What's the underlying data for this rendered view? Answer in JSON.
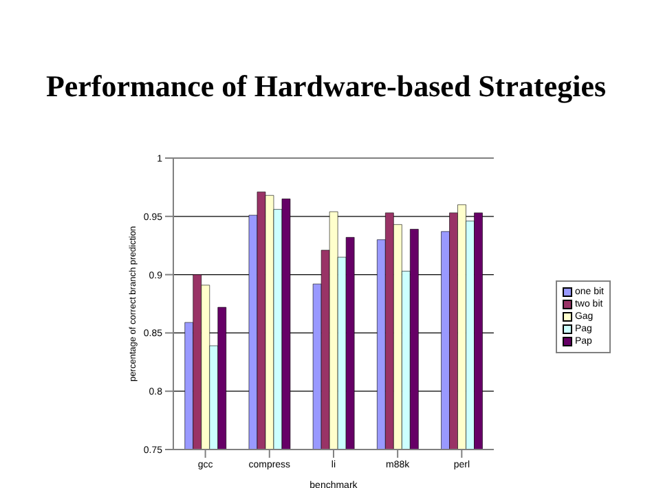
{
  "chart_data": {
    "type": "bar",
    "title": "Performance of Hardware-based Strategies",
    "xlabel": "benchmark",
    "ylabel": "percentage of correct branch prediction",
    "categories": [
      "gcc",
      "compress",
      "li",
      "m88k",
      "perl"
    ],
    "series": [
      {
        "name": "one bit",
        "color": "#9999ff",
        "values": [
          0.859,
          0.951,
          0.892,
          0.93,
          0.937
        ]
      },
      {
        "name": "two bit",
        "color": "#993366",
        "values": [
          0.9,
          0.971,
          0.921,
          0.953,
          0.953
        ]
      },
      {
        "name": "Gag",
        "color": "#ffffcc",
        "values": [
          0.891,
          0.968,
          0.954,
          0.943,
          0.96
        ]
      },
      {
        "name": "Pag",
        "color": "#ccffff",
        "values": [
          0.839,
          0.956,
          0.915,
          0.903,
          0.946
        ]
      },
      {
        "name": "Pap",
        "color": "#660066",
        "values": [
          0.872,
          0.965,
          0.932,
          0.939,
          0.953
        ]
      }
    ],
    "ylim": [
      0.75,
      1
    ],
    "yticks": [
      0.75,
      0.8,
      0.85,
      0.9,
      0.95,
      1
    ],
    "grid": "y",
    "legend": "right"
  }
}
